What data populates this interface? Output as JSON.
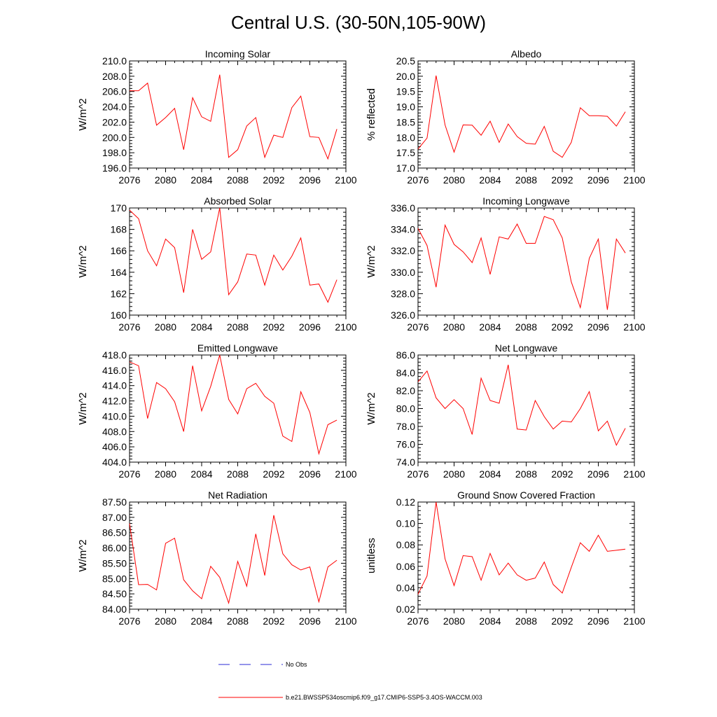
{
  "figure_title": "Central U.S. (30-50N,105-90W)",
  "colors": {
    "series": "#ff0000",
    "obs": "#2b2bd6",
    "axis": "#000000"
  },
  "legend": {
    "obs_label": "No Obs",
    "model_label": "b.e21.BWSSP534oscmip6.f09_g17.CMIP6-SSP5-3.4OS-WACCM.003"
  },
  "chart_data": [
    {
      "type": "line",
      "title": "Incoming Solar",
      "ylabel": "W/m^2",
      "xlim": [
        2076,
        2100
      ],
      "ylim": [
        196,
        210
      ],
      "yticks": [
        196,
        198,
        200,
        202,
        204,
        206,
        208,
        210
      ],
      "ytick_labels": [
        "196.0",
        "198.0",
        "200.0",
        "202.0",
        "204.0",
        "206.0",
        "208.0",
        "210.0"
      ],
      "xticks": [
        2076,
        2080,
        2084,
        2088,
        2092,
        2096,
        2100
      ],
      "xtick_labels": [
        "2076",
        "2080",
        "2084",
        "2088",
        "2092",
        "2096",
        "2100"
      ],
      "x": [
        2076,
        2077,
        2078,
        2079,
        2080,
        2081,
        2082,
        2083,
        2084,
        2085,
        2086,
        2087,
        2088,
        2089,
        2090,
        2091,
        2092,
        2093,
        2094,
        2095,
        2096,
        2097,
        2098,
        2099
      ],
      "values": [
        206.1,
        206.1,
        207.1,
        201.6,
        202.6,
        203.8,
        198.4,
        205.2,
        202.7,
        202.1,
        208.2,
        197.4,
        198.4,
        201.5,
        202.6,
        197.4,
        200.3,
        200.0,
        203.9,
        205.4,
        200.1,
        200.0,
        197.2,
        201.1
      ]
    },
    {
      "type": "line",
      "title": "Albedo",
      "ylabel": "% reflected",
      "xlim": [
        2076,
        2100
      ],
      "ylim": [
        17,
        20.5
      ],
      "yticks": [
        17,
        17.5,
        18,
        18.5,
        19,
        19.5,
        20,
        20.5
      ],
      "ytick_labels": [
        "17.0",
        "17.5",
        "18.0",
        "18.5",
        "19.0",
        "19.5",
        "20.0",
        "20.5"
      ],
      "xticks": [
        2076,
        2080,
        2084,
        2088,
        2092,
        2096,
        2100
      ],
      "xtick_labels": [
        "2076",
        "2080",
        "2084",
        "2088",
        "2092",
        "2096",
        "2100"
      ],
      "x": [
        2076,
        2077,
        2078,
        2079,
        2080,
        2081,
        2082,
        2083,
        2084,
        2085,
        2086,
        2087,
        2088,
        2089,
        2090,
        2091,
        2092,
        2093,
        2094,
        2095,
        2096,
        2097,
        2098,
        2099
      ],
      "values": [
        17.62,
        17.98,
        20.02,
        18.41,
        17.52,
        18.41,
        18.4,
        18.07,
        18.53,
        17.84,
        18.44,
        18.03,
        17.81,
        17.78,
        18.36,
        17.55,
        17.35,
        17.84,
        18.97,
        18.71,
        18.71,
        18.69,
        18.37,
        18.84
      ]
    },
    {
      "type": "line",
      "title": "Absorbed Solar",
      "ylabel": "W/m^2",
      "xlim": [
        2076,
        2100
      ],
      "ylim": [
        160,
        170
      ],
      "yticks": [
        160,
        162,
        164,
        166,
        168,
        170
      ],
      "ytick_labels": [
        "160",
        "162",
        "164",
        "166",
        "168",
        "170"
      ],
      "xticks": [
        2076,
        2080,
        2084,
        2088,
        2092,
        2096,
        2100
      ],
      "xtick_labels": [
        "2076",
        "2080",
        "2084",
        "2088",
        "2092",
        "2096",
        "2100"
      ],
      "x": [
        2076,
        2077,
        2078,
        2079,
        2080,
        2081,
        2082,
        2083,
        2084,
        2085,
        2086,
        2087,
        2088,
        2089,
        2090,
        2091,
        2092,
        2093,
        2094,
        2095,
        2096,
        2097,
        2098,
        2099
      ],
      "values": [
        169.8,
        169.0,
        166.0,
        164.6,
        167.1,
        166.3,
        162.1,
        168.0,
        165.2,
        165.9,
        170.0,
        161.9,
        163.1,
        165.7,
        165.6,
        162.8,
        165.6,
        164.2,
        165.5,
        167.2,
        162.8,
        162.9,
        161.2,
        163.3
      ]
    },
    {
      "type": "line",
      "title": "Incoming Longwave",
      "ylabel": "W/m^2",
      "xlim": [
        2076,
        2100
      ],
      "ylim": [
        326,
        336
      ],
      "yticks": [
        326,
        328,
        330,
        332,
        334,
        336
      ],
      "ytick_labels": [
        "326.0",
        "328.0",
        "330.0",
        "332.0",
        "334.0",
        "336.0"
      ],
      "xticks": [
        2076,
        2080,
        2084,
        2088,
        2092,
        2096,
        2100
      ],
      "xtick_labels": [
        "2076",
        "2080",
        "2084",
        "2088",
        "2092",
        "2096",
        "2100"
      ],
      "x": [
        2076,
        2077,
        2078,
        2079,
        2080,
        2081,
        2082,
        2083,
        2084,
        2085,
        2086,
        2087,
        2088,
        2089,
        2090,
        2091,
        2092,
        2093,
        2094,
        2095,
        2096,
        2097,
        2098,
        2099
      ],
      "values": [
        334.1,
        332.5,
        328.6,
        334.4,
        332.6,
        331.9,
        330.9,
        333.2,
        329.8,
        333.3,
        333.1,
        334.5,
        332.7,
        332.7,
        335.2,
        334.9,
        333.2,
        329.1,
        326.7,
        331.3,
        333.1,
        326.5,
        333.1,
        331.8
      ]
    },
    {
      "type": "line",
      "title": "Emitted Longwave",
      "ylabel": "W/m^2",
      "xlim": [
        2076,
        2100
      ],
      "ylim": [
        404,
        418
      ],
      "yticks": [
        404,
        406,
        408,
        410,
        412,
        414,
        416,
        418
      ],
      "ytick_labels": [
        "404.0",
        "406.0",
        "408.0",
        "410.0",
        "412.0",
        "414.0",
        "416.0",
        "418.0"
      ],
      "xticks": [
        2076,
        2080,
        2084,
        2088,
        2092,
        2096,
        2100
      ],
      "xtick_labels": [
        "2076",
        "2080",
        "2084",
        "2088",
        "2092",
        "2096",
        "2100"
      ],
      "x": [
        2076,
        2077,
        2078,
        2079,
        2080,
        2081,
        2082,
        2083,
        2084,
        2085,
        2086,
        2087,
        2088,
        2089,
        2090,
        2091,
        2092,
        2093,
        2094,
        2095,
        2096,
        2097,
        2098,
        2099
      ],
      "values": [
        417.1,
        416.6,
        409.7,
        414.4,
        413.6,
        411.9,
        408.0,
        416.6,
        410.7,
        413.9,
        418.0,
        412.2,
        410.3,
        413.6,
        414.3,
        412.6,
        411.7,
        407.4,
        406.7,
        413.2,
        410.5,
        405.1,
        408.9,
        409.5
      ]
    },
    {
      "type": "line",
      "title": "Net Longwave",
      "ylabel": "W/m^2",
      "xlim": [
        2076,
        2100
      ],
      "ylim": [
        74,
        86
      ],
      "yticks": [
        74,
        76,
        78,
        80,
        82,
        84,
        86
      ],
      "ytick_labels": [
        "74.0",
        "76.0",
        "78.0",
        "80.0",
        "82.0",
        "84.0",
        "86.0"
      ],
      "xticks": [
        2076,
        2080,
        2084,
        2088,
        2092,
        2096,
        2100
      ],
      "xtick_labels": [
        "2076",
        "2080",
        "2084",
        "2088",
        "2092",
        "2096",
        "2100"
      ],
      "x": [
        2076,
        2077,
        2078,
        2079,
        2080,
        2081,
        2082,
        2083,
        2084,
        2085,
        2086,
        2087,
        2088,
        2089,
        2090,
        2091,
        2092,
        2093,
        2094,
        2095,
        2096,
        2097,
        2098,
        2099
      ],
      "values": [
        83.0,
        84.2,
        81.2,
        80.0,
        81.0,
        80.0,
        77.1,
        83.4,
        80.9,
        80.6,
        84.9,
        77.7,
        77.6,
        80.9,
        79.1,
        77.7,
        78.6,
        78.5,
        80.0,
        81.9,
        77.5,
        78.6,
        75.9,
        77.8
      ]
    },
    {
      "type": "line",
      "title": "Net Radiation",
      "ylabel": "W/m^2",
      "xlim": [
        2076,
        2100
      ],
      "ylim": [
        84,
        87.5
      ],
      "yticks": [
        84,
        84.5,
        85,
        85.5,
        86,
        86.5,
        87,
        87.5
      ],
      "ytick_labels": [
        "84.00",
        "84.50",
        "85.00",
        "85.50",
        "86.00",
        "86.50",
        "87.00",
        "87.50"
      ],
      "xticks": [
        2076,
        2080,
        2084,
        2088,
        2092,
        2096,
        2100
      ],
      "xtick_labels": [
        "2076",
        "2080",
        "2084",
        "2088",
        "2092",
        "2096",
        "2100"
      ],
      "x": [
        2076,
        2077,
        2078,
        2079,
        2080,
        2081,
        2082,
        2083,
        2084,
        2085,
        2086,
        2087,
        2088,
        2089,
        2090,
        2091,
        2092,
        2093,
        2094,
        2095,
        2096,
        2097,
        2098,
        2099
      ],
      "values": [
        86.8,
        84.8,
        84.81,
        84.63,
        86.15,
        86.32,
        84.96,
        84.6,
        84.34,
        85.4,
        85.04,
        84.2,
        85.56,
        84.75,
        86.46,
        85.1,
        87.07,
        85.81,
        85.45,
        85.28,
        85.38,
        84.24,
        85.38,
        85.6
      ]
    },
    {
      "type": "line",
      "title": "Ground Snow Covered Fraction",
      "ylabel": "unitless",
      "xlim": [
        2076,
        2100
      ],
      "ylim": [
        0.02,
        0.12
      ],
      "yticks": [
        0.02,
        0.04,
        0.06,
        0.08,
        0.1,
        0.12
      ],
      "ytick_labels": [
        "0.02",
        "0.04",
        "0.06",
        "0.08",
        "0.10",
        "0.12"
      ],
      "xticks": [
        2076,
        2080,
        2084,
        2088,
        2092,
        2096,
        2100
      ],
      "xtick_labels": [
        "2076",
        "2080",
        "2084",
        "2088",
        "2092",
        "2096",
        "2100"
      ],
      "x": [
        2076,
        2077,
        2078,
        2079,
        2080,
        2081,
        2082,
        2083,
        2084,
        2085,
        2086,
        2087,
        2088,
        2089,
        2090,
        2091,
        2092,
        2093,
        2094,
        2095,
        2096,
        2097,
        2098,
        2099
      ],
      "values": [
        0.034,
        0.051,
        0.12,
        0.067,
        0.042,
        0.07,
        0.069,
        0.047,
        0.072,
        0.052,
        0.063,
        0.052,
        0.047,
        0.049,
        0.064,
        0.043,
        0.035,
        0.059,
        0.082,
        0.074,
        0.089,
        0.074,
        0.075,
        0.076
      ]
    }
  ]
}
